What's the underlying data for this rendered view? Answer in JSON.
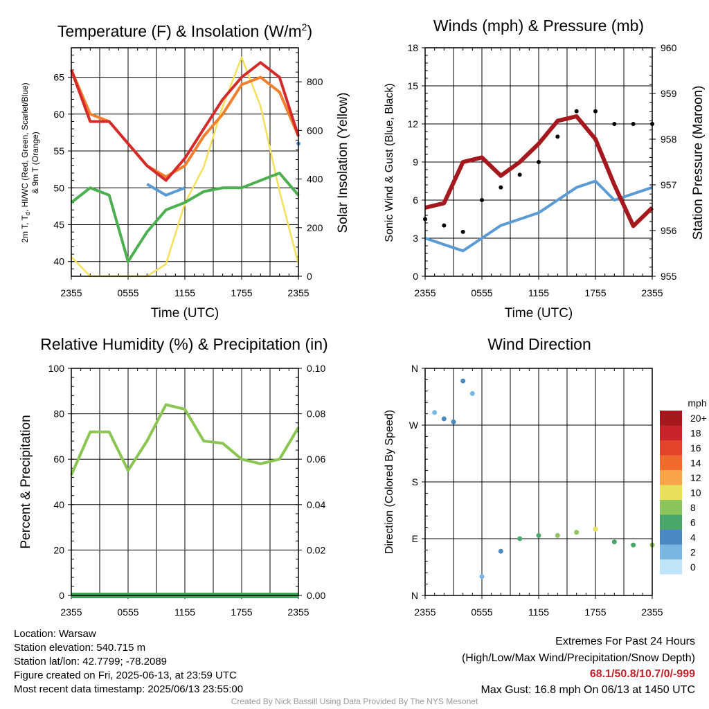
{
  "titles": {
    "temp": "Temperature (F) & Insolation (W/m",
    "temp_sup": "2",
    "temp_close": ")",
    "winds": "Winds (mph) & Pressure (mb)",
    "rh": "Relative Humidity (%) & Precipitation (in)",
    "dir": "Wind Direction"
  },
  "axes": {
    "temp_ylabel_1": "2m T, T",
    "temp_ylabel_sub": "d",
    "temp_ylabel_2": ", HI/WC (Red, Green, Scarlet/Blue)",
    "temp_ylabel_3": "& 9m T (Orange)",
    "temp_y2label": "Solar Insolation (Yellow)",
    "winds_ylabel": "Sonic Wind & Gust (Blue, Black)",
    "winds_y2label": "Station Pressure (Maroon)",
    "rh_ylabel": "Percent & Precipitation",
    "dir_ylabel": "Direction (Colored By Speed)",
    "xlabel": "Time (UTC)",
    "x_ticks": [
      "2355",
      "0555",
      "1155",
      "1755",
      "2355"
    ],
    "temp_yticks": [
      "40",
      "45",
      "50",
      "55",
      "60",
      "65"
    ],
    "temp_y2ticks": [
      "0",
      "200",
      "400",
      "600",
      "800"
    ],
    "winds_yticks": [
      "0",
      "3",
      "6",
      "9",
      "12",
      "15",
      "18"
    ],
    "winds_y2ticks": [
      "955",
      "956",
      "957",
      "958",
      "959",
      "960"
    ],
    "rh_yticks": [
      "0",
      "20",
      "40",
      "60",
      "80",
      "100"
    ],
    "rh_y2ticks": [
      "0.00",
      "0.02",
      "0.04",
      "0.06",
      "0.08",
      "0.10"
    ],
    "dir_yticks": [
      "N",
      "E",
      "S",
      "W",
      "N"
    ]
  },
  "legend": {
    "title": "mph",
    "labels": [
      "20+",
      "18",
      "16",
      "14",
      "12",
      "10",
      "8",
      "6",
      "4",
      "2",
      "0"
    ],
    "colors": [
      "#a5191e",
      "#c8232a",
      "#e2442c",
      "#f06a2e",
      "#f9a44a",
      "#e8e05a",
      "#8cc65a",
      "#4aa66a",
      "#4a88c2",
      "#7ab6e2",
      "#bfe3f7"
    ]
  },
  "info": {
    "location": "Location: Warsaw",
    "elevation": "Station elevation: 540.715 m",
    "latlon": "Station lat/lon: 42.7799; -78.2089",
    "created": "Figure created on Fri, 2025-06-13, at 23:59 UTC",
    "recent": "Most recent data timestamp: 2025/06/13 23:55:00"
  },
  "extremes": {
    "title": "Extremes For Past 24 Hours",
    "subtitle": "(High/Low/Max Wind/Precipitation/Snow Depth)",
    "values": "68.1/50.8/10.7/0/-999",
    "max_gust": "Max Gust: 16.8 mph On 06/13 at 1450 UTC"
  },
  "footer": "Created By Nick Bassill Using Data Provided By The NYS Mesonet",
  "colors": {
    "temp": "#d42a2a",
    "temp9m": "#f07f2e",
    "heat_index": "#f07f2e",
    "wind_chill": "#5b9bd5",
    "dewpoint": "#4caf50",
    "insolation": "#f6e05a",
    "wind": "#5b9bd5",
    "gust": "#000000",
    "pressure": "#a5191e",
    "rh": "#8cc652",
    "precip": "#3aa655"
  },
  "chart_data": [
    {
      "type": "line",
      "panel": "temp",
      "x": [
        "2355",
        "0155",
        "0355",
        "0555",
        "0755",
        "0955",
        "1155",
        "1355",
        "1555",
        "1755",
        "1955",
        "2155",
        "2355"
      ],
      "ylim": [
        38,
        69
      ],
      "y2lim": [
        0,
        940
      ],
      "series": [
        {
          "name": "2m T",
          "values": [
            66,
            59,
            59,
            56,
            53,
            51,
            54,
            58,
            62,
            65,
            67,
            65,
            57
          ],
          "axis": "left"
        },
        {
          "name": "9m T",
          "values": [
            66,
            60,
            59,
            56,
            53,
            51.5,
            53,
            57,
            60,
            64,
            65,
            63,
            57
          ],
          "axis": "left"
        },
        {
          "name": "HI/WC",
          "values": [
            null,
            null,
            null,
            null,
            50.5,
            49,
            50,
            null,
            null,
            null,
            null,
            null,
            56
          ],
          "axis": "left"
        },
        {
          "name": "Td",
          "values": [
            48,
            50,
            49,
            40,
            44,
            47,
            48,
            49.5,
            50,
            50,
            51,
            52,
            49
          ],
          "axis": "left"
        },
        {
          "name": "Solar Insolation",
          "values": [
            80,
            0,
            0,
            0,
            0,
            50,
            300,
            450,
            700,
            900,
            700,
            350,
            50
          ],
          "axis": "right"
        }
      ]
    },
    {
      "type": "line",
      "panel": "winds",
      "x": [
        "2355",
        "0155",
        "0355",
        "0555",
        "0755",
        "0955",
        "1155",
        "1355",
        "1555",
        "1755",
        "1955",
        "2155",
        "2355"
      ],
      "ylim": [
        0,
        18
      ],
      "y2lim": [
        955,
        960
      ],
      "series": [
        {
          "name": "Sonic Wind",
          "values": [
            3,
            2.5,
            2,
            3,
            4,
            4.5,
            5,
            6,
            7,
            7.5,
            6,
            6.5,
            7
          ],
          "axis": "left"
        },
        {
          "name": "Gust",
          "values": [
            4.5,
            4,
            3.5,
            6,
            7,
            8,
            9,
            11,
            13,
            13,
            12,
            12,
            12
          ],
          "axis": "left"
        },
        {
          "name": "Station Pressure",
          "values": [
            956.5,
            956.6,
            957.5,
            957.6,
            957.2,
            957.5,
            957.9,
            958.4,
            958.5,
            958.0,
            957.0,
            956.1,
            956.5
          ],
          "axis": "right"
        }
      ]
    },
    {
      "type": "line",
      "panel": "rh",
      "x": [
        "2355",
        "0155",
        "0355",
        "0555",
        "0755",
        "0955",
        "1155",
        "1355",
        "1555",
        "1755",
        "1955",
        "2155",
        "2355"
      ],
      "ylim": [
        0,
        100
      ],
      "y2lim": [
        0,
        0.1
      ],
      "series": [
        {
          "name": "Relative Humidity",
          "values": [
            53,
            72,
            72,
            55,
            68,
            84,
            82,
            68,
            67,
            60,
            58,
            60,
            74
          ],
          "axis": "left"
        },
        {
          "name": "Precipitation",
          "values": [
            0,
            0,
            0,
            0,
            0,
            0,
            0,
            0,
            0,
            0,
            0,
            0,
            0
          ],
          "axis": "right"
        }
      ]
    },
    {
      "type": "scatter",
      "panel": "direction",
      "ylim": [
        0,
        360
      ],
      "points": [
        {
          "x": "0055",
          "dir": 290,
          "speed": 2
        },
        {
          "x": "0155",
          "dir": 280,
          "speed": 3
        },
        {
          "x": "0255",
          "dir": 275,
          "speed": 3
        },
        {
          "x": "0355",
          "dir": 340,
          "speed": 3
        },
        {
          "x": "0455",
          "dir": 320,
          "speed": 2
        },
        {
          "x": "0555",
          "dir": 30,
          "speed": 2
        },
        {
          "x": "0755",
          "dir": 70,
          "speed": 4
        },
        {
          "x": "0955",
          "dir": 90,
          "speed": 5
        },
        {
          "x": "1155",
          "dir": 95,
          "speed": 5
        },
        {
          "x": "1355",
          "dir": 95,
          "speed": 7
        },
        {
          "x": "1555",
          "dir": 100,
          "speed": 8
        },
        {
          "x": "1755",
          "dir": 105,
          "speed": 9
        },
        {
          "x": "1955",
          "dir": 85,
          "speed": 6
        },
        {
          "x": "2155",
          "dir": 80,
          "speed": 6
        },
        {
          "x": "2355",
          "dir": 80,
          "speed": 7
        }
      ]
    }
  ]
}
